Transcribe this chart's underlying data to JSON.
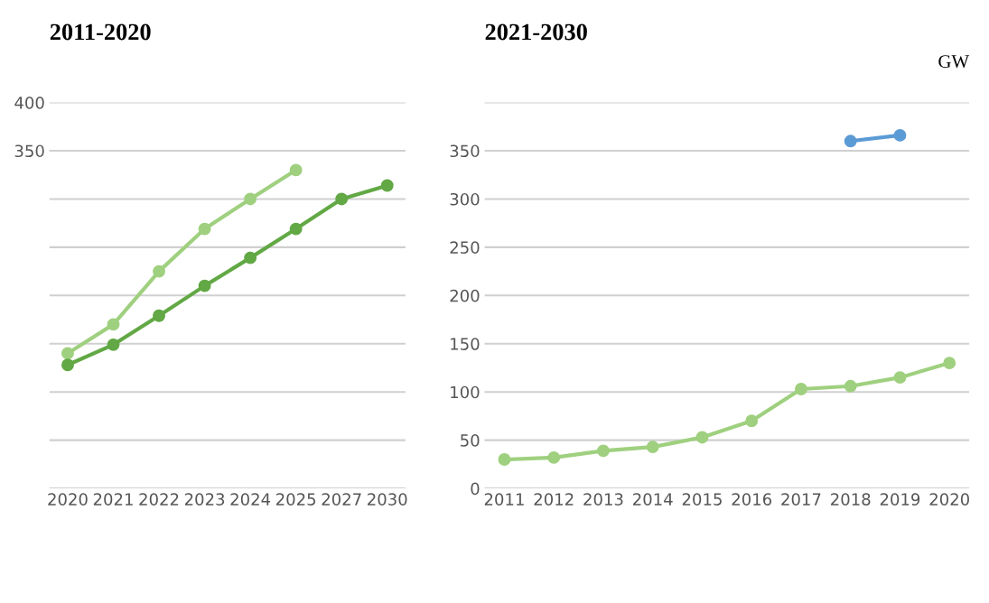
{
  "chart_data": [
    {
      "type": "line",
      "title": "2011-2020",
      "categories": [
        "2020",
        "2021",
        "2022",
        "2023",
        "2024",
        "2025",
        "2027",
        "2030"
      ],
      "ylim": [
        0,
        400
      ],
      "yticks": [
        {
          "value": 0,
          "label": null
        },
        {
          "value": 50,
          "label": null
        },
        {
          "value": 100,
          "label": null
        },
        {
          "value": 150,
          "label": null
        },
        {
          "value": 200,
          "label": null
        },
        {
          "value": 250,
          "label": null
        },
        {
          "value": 300,
          "label": null
        },
        350,
        400
      ],
      "grid": "y",
      "marker": "circle",
      "line_style": "solid",
      "series": [
        {
          "color": "#9fd07f",
          "values": [
            140,
            170,
            225,
            269,
            300,
            330,
            null,
            null
          ]
        },
        {
          "color": "#62a845",
          "values": [
            128,
            149,
            179,
            210,
            239,
            269,
            300,
            314
          ]
        }
      ]
    },
    {
      "type": "line",
      "title": "2021-2030",
      "annotations": [
        "GW"
      ],
      "categories": [
        "2011",
        "2012",
        "2013",
        "2014",
        "2015",
        "2016",
        "2017",
        "2018",
        "2019",
        "2020"
      ],
      "ylim": [
        0,
        400
      ],
      "yticks": [
        0,
        50,
        100,
        150,
        200,
        250,
        300,
        350,
        {
          "value": 400,
          "label": null
        }
      ],
      "grid": "y",
      "marker": "circle",
      "line_style": "solid",
      "series": [
        {
          "color": "#9fd07f",
          "values": [
            30,
            32,
            39,
            43,
            53,
            70,
            103,
            106,
            115,
            130
          ]
        },
        {
          "color": "#5b9bd5",
          "values": [
            null,
            null,
            null,
            null,
            null,
            null,
            null,
            360,
            366,
            null
          ]
        }
      ]
    }
  ]
}
